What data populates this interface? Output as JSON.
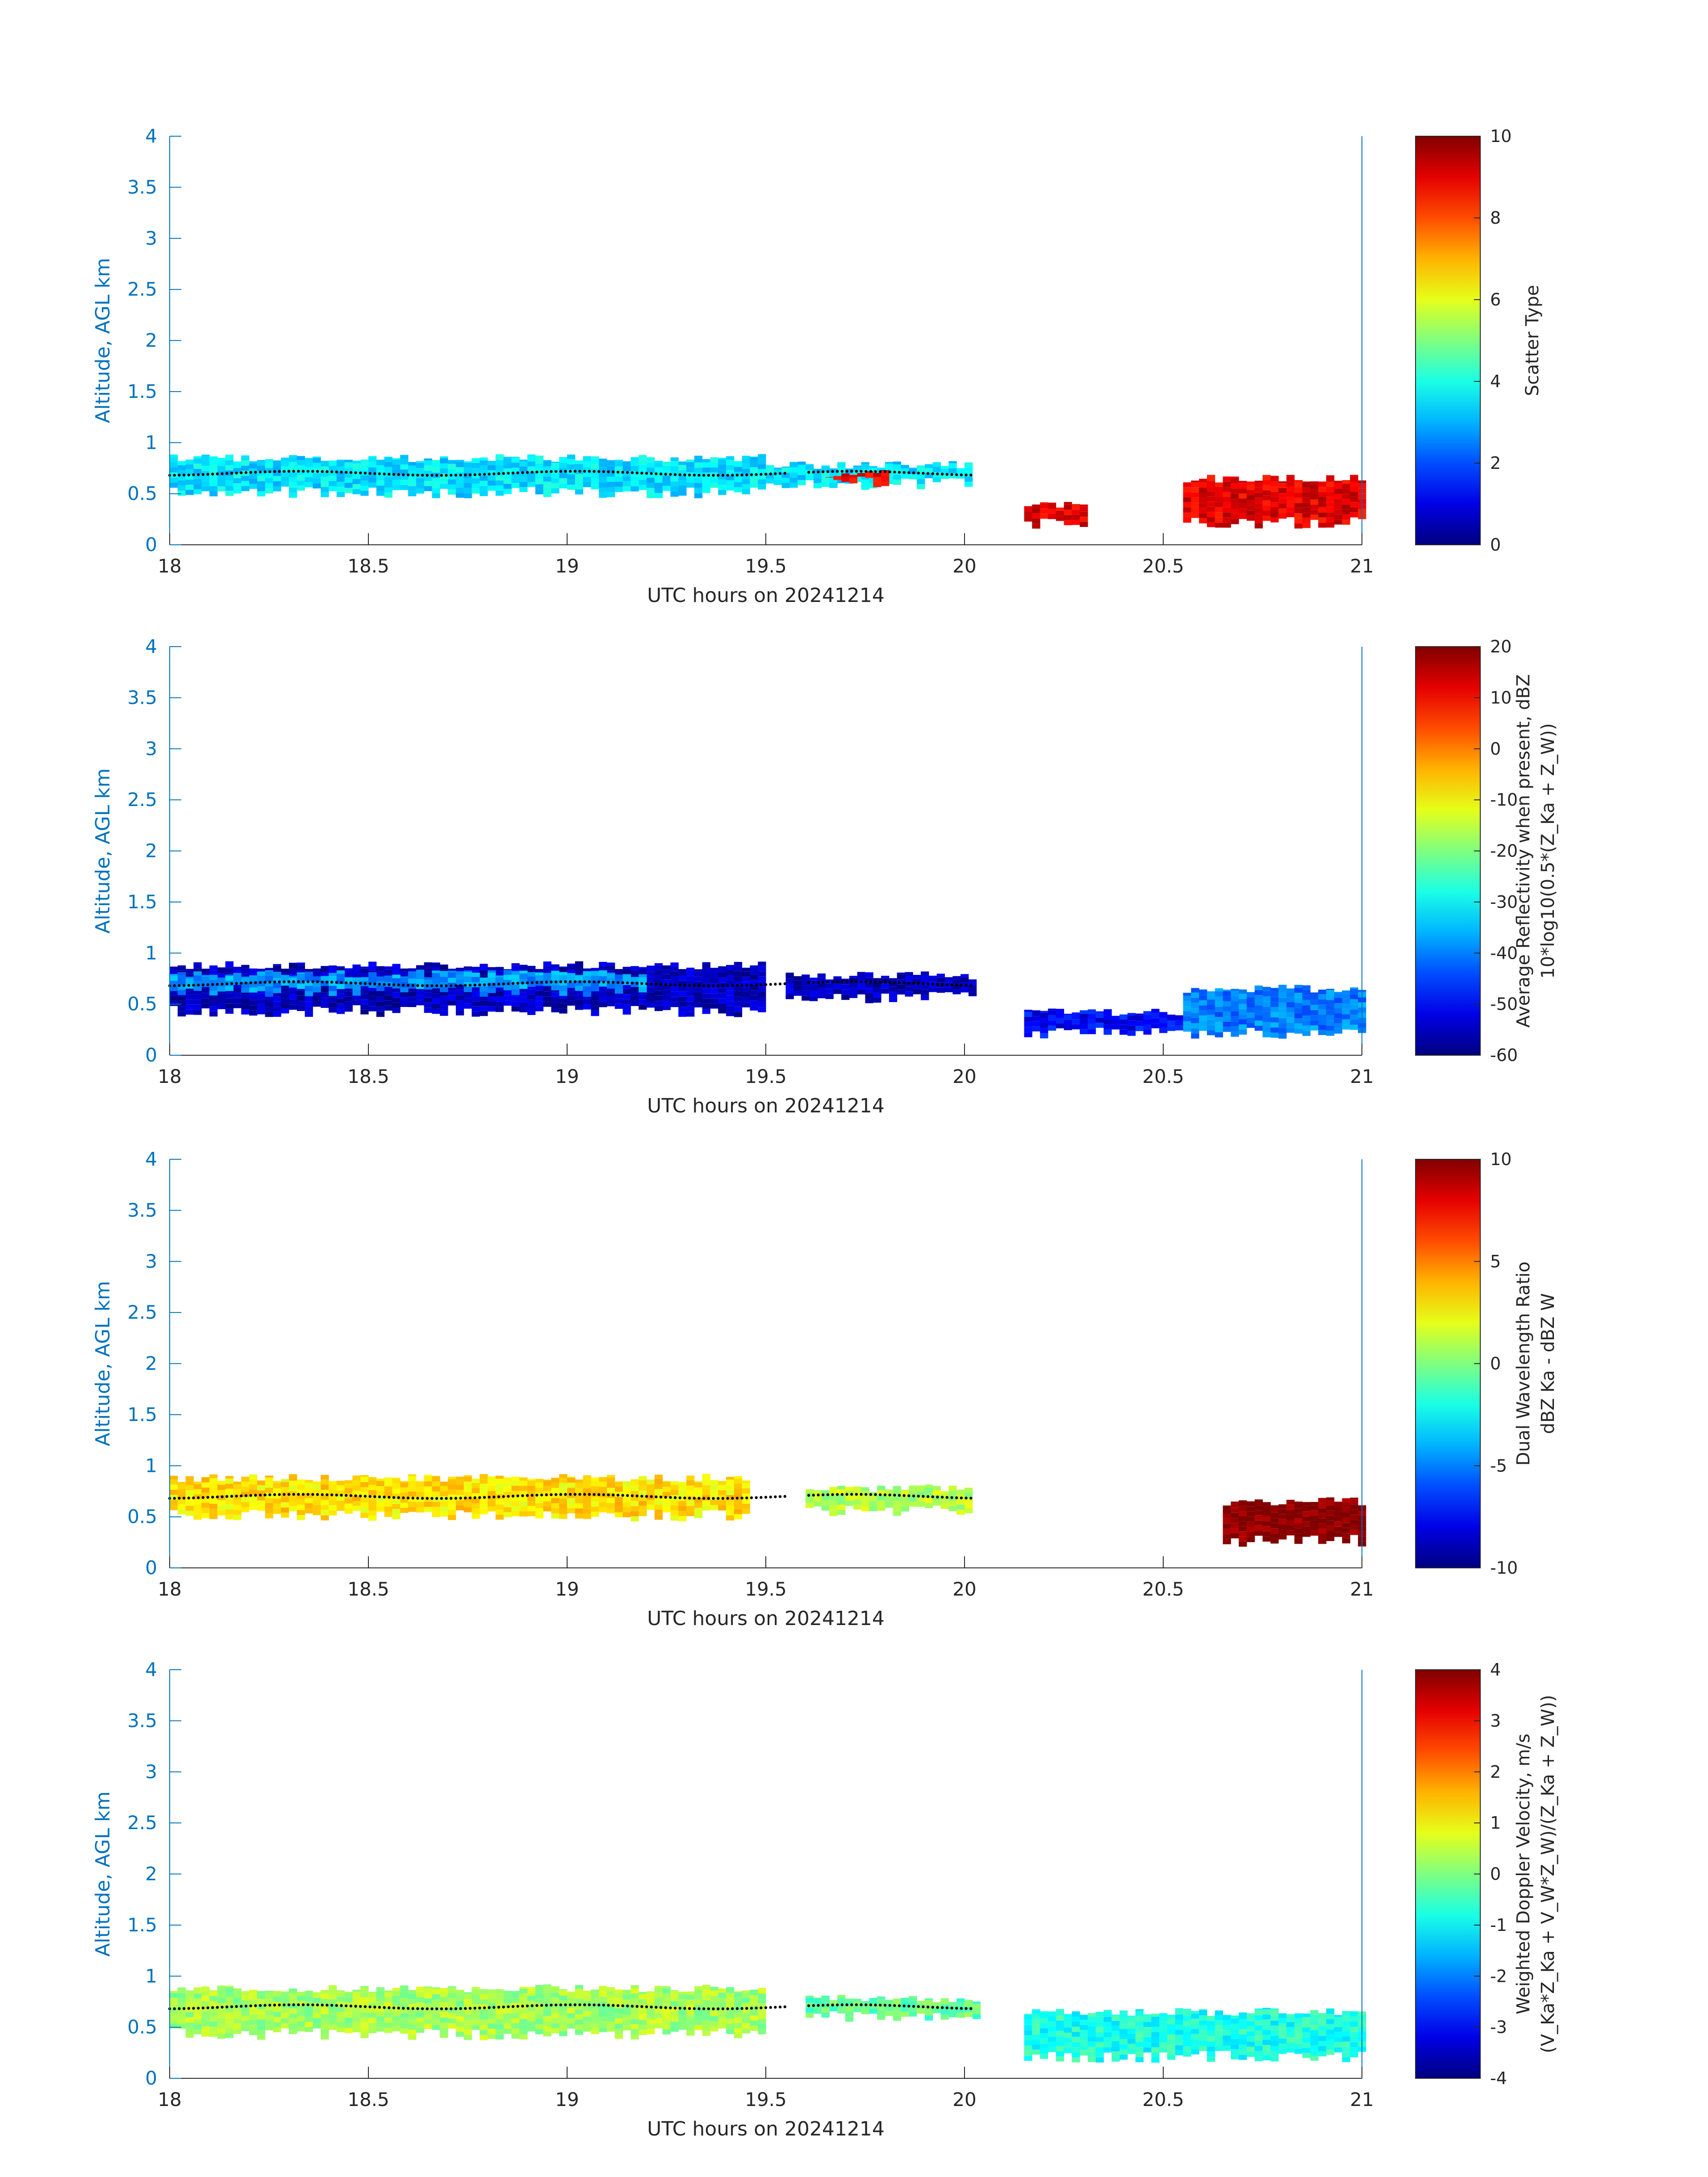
{
  "chart_data": [
    {
      "type": "heatmap",
      "xlabel": "UTC hours on 20241214",
      "ylabel": "Altitude, AGL km",
      "xlim": [
        18,
        21
      ],
      "ylim": [
        0,
        4
      ],
      "x_ticks": [
        "18",
        "18.5",
        "19",
        "19.5",
        "20",
        "20.5",
        "21"
      ],
      "y_ticks": [
        "0",
        "0.5",
        "1",
        "1.5",
        "2",
        "2.5",
        "3",
        "3.5",
        "4"
      ],
      "colorbar": {
        "label_lines": [
          "Scatter Type"
        ],
        "range": [
          0,
          10
        ],
        "ticks": [
          "0",
          "2",
          "4",
          "6",
          "8",
          "10"
        ]
      },
      "colormap": "jet",
      "cloud_top_line_km": 0.7,
      "regions": [
        {
          "x_start": 18.0,
          "x_end": 19.5,
          "z_bottom": 0.5,
          "z_top": 0.85,
          "value": 3.5
        },
        {
          "x_start": 19.5,
          "x_end": 20.02,
          "z_bottom": 0.58,
          "z_top": 0.78,
          "value": 3.5
        },
        {
          "x_start": 19.65,
          "x_end": 19.8,
          "z_bottom": 0.6,
          "z_top": 0.7,
          "value": 9
        },
        {
          "x_start": 20.15,
          "x_end": 20.3,
          "z_bottom": 0.2,
          "z_top": 0.4,
          "value": 9
        },
        {
          "x_start": 20.55,
          "x_end": 21.0,
          "z_bottom": 0.2,
          "z_top": 0.65,
          "value": 9
        }
      ]
    },
    {
      "type": "heatmap",
      "xlabel": "UTC hours on 20241214",
      "ylabel": "Altitude, AGL km",
      "xlim": [
        18,
        21
      ],
      "ylim": [
        0,
        4
      ],
      "x_ticks": [
        "18",
        "18.5",
        "19",
        "19.5",
        "20",
        "20.5",
        "21"
      ],
      "y_ticks": [
        "0",
        "0.5",
        "1",
        "1.5",
        "2",
        "2.5",
        "3",
        "3.5",
        "4"
      ],
      "colorbar": {
        "label_lines": [
          "Average Reflectivity when present, dBZ",
          "10*log10(0.5*(Z_Ka + Z_W))"
        ],
        "range": [
          -60,
          20
        ],
        "ticks": [
          "-60",
          "-50",
          "-40",
          "-30",
          "-20",
          "-10",
          "0",
          "10",
          "20"
        ]
      },
      "colormap": "jet",
      "cloud_top_line_km": 0.7,
      "regions": [
        {
          "x_start": 18.0,
          "x_end": 19.5,
          "z_bottom": 0.42,
          "z_top": 0.88,
          "value": -55
        },
        {
          "x_start": 18.0,
          "x_end": 19.2,
          "z_bottom": 0.62,
          "z_top": 0.8,
          "value": -38
        },
        {
          "x_start": 19.55,
          "x_end": 20.03,
          "z_bottom": 0.55,
          "z_top": 0.78,
          "value": -55
        },
        {
          "x_start": 20.15,
          "x_end": 20.55,
          "z_bottom": 0.2,
          "z_top": 0.42,
          "value": -50
        },
        {
          "x_start": 20.55,
          "x_end": 21.0,
          "z_bottom": 0.2,
          "z_top": 0.65,
          "value": -40
        }
      ]
    },
    {
      "type": "heatmap",
      "xlabel": "UTC hours on 20241214",
      "ylabel": "Altitude, AGL km",
      "xlim": [
        18,
        21
      ],
      "ylim": [
        0,
        4
      ],
      "x_ticks": [
        "18",
        "18.5",
        "19",
        "19.5",
        "20",
        "20.5",
        "21"
      ],
      "y_ticks": [
        "0",
        "0.5",
        "1",
        "1.5",
        "2",
        "2.5",
        "3",
        "3.5",
        "4"
      ],
      "colorbar": {
        "label_lines": [
          "Dual Wavelength Ratio",
          "dBZ Ka - dBZ W"
        ],
        "range": [
          -10,
          10
        ],
        "ticks": [
          "-10",
          "-5",
          "0",
          "5",
          "10"
        ]
      },
      "colormap": "jet",
      "cloud_top_line_km": 0.7,
      "regions": [
        {
          "x_start": 18.0,
          "x_end": 19.45,
          "z_bottom": 0.5,
          "z_top": 0.88,
          "value": 3
        },
        {
          "x_start": 19.6,
          "x_end": 20.02,
          "z_bottom": 0.55,
          "z_top": 0.78,
          "value": 1
        },
        {
          "x_start": 20.65,
          "x_end": 21.0,
          "z_bottom": 0.25,
          "z_top": 0.65,
          "value": 10
        }
      ]
    },
    {
      "type": "heatmap",
      "xlabel": "UTC hours on 20241214",
      "ylabel": "Altitude, AGL km",
      "xlim": [
        18,
        21
      ],
      "ylim": [
        0,
        4
      ],
      "x_ticks": [
        "18",
        "18.5",
        "19",
        "19.5",
        "20",
        "20.5",
        "21"
      ],
      "y_ticks": [
        "0",
        "0.5",
        "1",
        "1.5",
        "2",
        "2.5",
        "3",
        "3.5",
        "4"
      ],
      "colorbar": {
        "label_lines": [
          "Weighted Doppler Velocity, m/s",
          "(V_Ka*Z_Ka + V_W*Z_W)/(Z_Ka + Z_W))"
        ],
        "range": [
          -4,
          4
        ],
        "ticks": [
          "-4",
          "-3",
          "-2",
          "-1",
          "0",
          "1",
          "2",
          "3",
          "4"
        ]
      },
      "colormap": "jet",
      "cloud_top_line_km": 0.7,
      "regions": [
        {
          "x_start": 18.0,
          "x_end": 19.5,
          "z_bottom": 0.42,
          "z_top": 0.88,
          "value": 0.3
        },
        {
          "x_start": 19.6,
          "x_end": 20.03,
          "z_bottom": 0.6,
          "z_top": 0.78,
          "value": -0.2
        },
        {
          "x_start": 20.15,
          "x_end": 21.0,
          "z_bottom": 0.2,
          "z_top": 0.65,
          "value": -0.8
        }
      ]
    }
  ]
}
